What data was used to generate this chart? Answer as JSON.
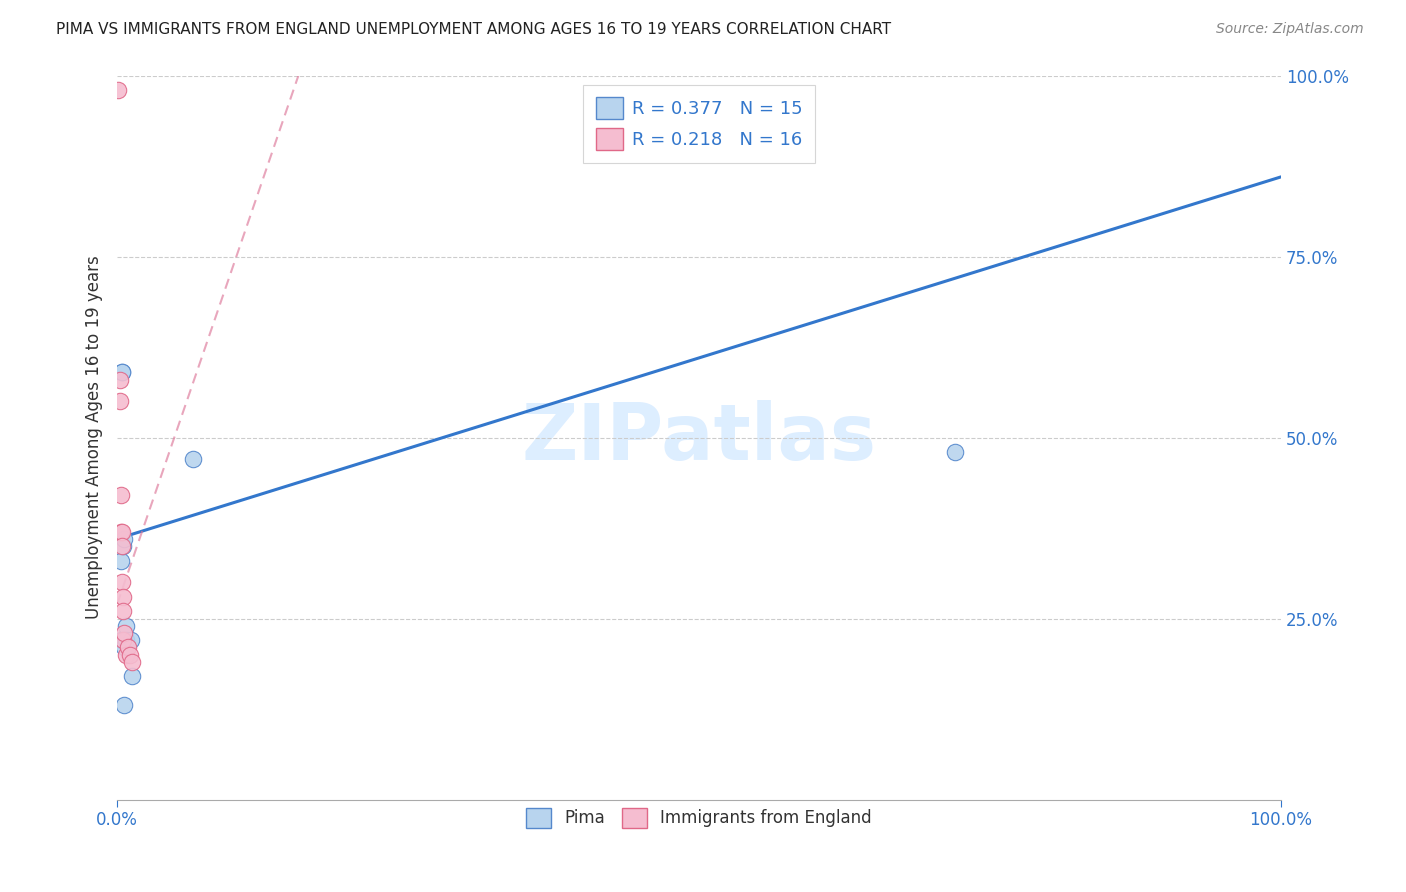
{
  "title": "PIMA VS IMMIGRANTS FROM ENGLAND UNEMPLOYMENT AMONG AGES 16 TO 19 YEARS CORRELATION CHART",
  "source": "Source: ZipAtlas.com",
  "ylabel": "Unemployment Among Ages 16 to 19 years",
  "xlim": [
    0.0,
    1.0
  ],
  "ylim": [
    0.0,
    1.0
  ],
  "legend_blue_r": "R = 0.377",
  "legend_blue_n": "N = 15",
  "legend_pink_r": "R = 0.218",
  "legend_pink_n": "N = 16",
  "pima_color": "#b8d4ee",
  "england_color": "#f5bdd0",
  "pima_edge": "#5588cc",
  "england_edge": "#e06888",
  "trendline_blue": "#3377cc",
  "trendline_pink": "#dd7799",
  "watermark_color": "#ddeeff",
  "title_color": "#222222",
  "axis_label_color": "#333333",
  "tick_color": "#3377cc",
  "legend_r_color": "#3377cc",
  "grid_color": "#cccccc",
  "pima_points_x": [
    0.003,
    0.003,
    0.004,
    0.004,
    0.005,
    0.005,
    0.006,
    0.006,
    0.006,
    0.008,
    0.008,
    0.012,
    0.013,
    0.065,
    0.72
  ],
  "pima_points_y": [
    0.22,
    0.33,
    0.59,
    0.59,
    0.35,
    0.22,
    0.36,
    0.21,
    0.13,
    0.24,
    0.22,
    0.22,
    0.17,
    0.47,
    0.48
  ],
  "england_points_x": [
    0.001,
    0.002,
    0.002,
    0.003,
    0.003,
    0.004,
    0.004,
    0.004,
    0.005,
    0.005,
    0.005,
    0.006,
    0.008,
    0.009,
    0.011,
    0.013
  ],
  "england_points_y": [
    0.98,
    0.58,
    0.55,
    0.42,
    0.37,
    0.37,
    0.35,
    0.3,
    0.28,
    0.26,
    0.22,
    0.23,
    0.2,
    0.21,
    0.2,
    0.19
  ],
  "blue_trend_x0": 0.0,
  "blue_trend_y0": 0.36,
  "blue_trend_x1": 1.0,
  "blue_trend_y1": 0.86,
  "pink_trend_x0": 0.0,
  "pink_trend_y0": 0.27,
  "pink_trend_x1": 0.16,
  "pink_trend_y1": 1.02,
  "marker_size": 140
}
